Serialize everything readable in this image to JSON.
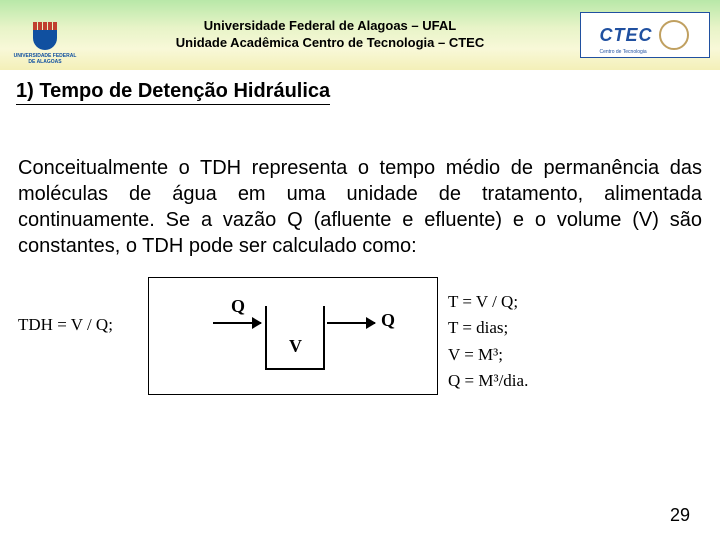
{
  "header": {
    "line1": "Universidade Federal de Alagoas – UFAL",
    "line2": "Unidade Acadêmica Centro de Tecnologia – CTEC",
    "left_logo_text1": "UNIVERSIDADE FEDERAL",
    "left_logo_text2": "DE ALAGOAS",
    "right_logo_main": "CTEC",
    "right_logo_sub": "Centro de Tecnologia"
  },
  "section_title": "1) Tempo de Detenção Hidráulica",
  "paragraph": "Conceitualmente o TDH representa o tempo médio de permanência das moléculas de água em uma unidade de tratamento, alimentada continuamente. Se a vazão Q (afluente e efluente) e o volume (V) são constantes, o TDH pode ser calculado como:",
  "formula_left": "TDH = V / Q;",
  "diagram": {
    "q_in": "Q",
    "q_out": "Q",
    "v": "V"
  },
  "formula_right": {
    "l1": "T = V / Q;",
    "l2": "T = dias;",
    "l3": "V = M³;",
    "l4": "Q = M³/dia."
  },
  "page_number": "29",
  "colors": {
    "header_grad_top": "#b8e8a8",
    "header_grad_bottom": "#f4f0b8",
    "ctec_blue": "#2050a0",
    "crest_blue": "#1050a0",
    "crest_red": "#c04030",
    "text": "#000000"
  }
}
